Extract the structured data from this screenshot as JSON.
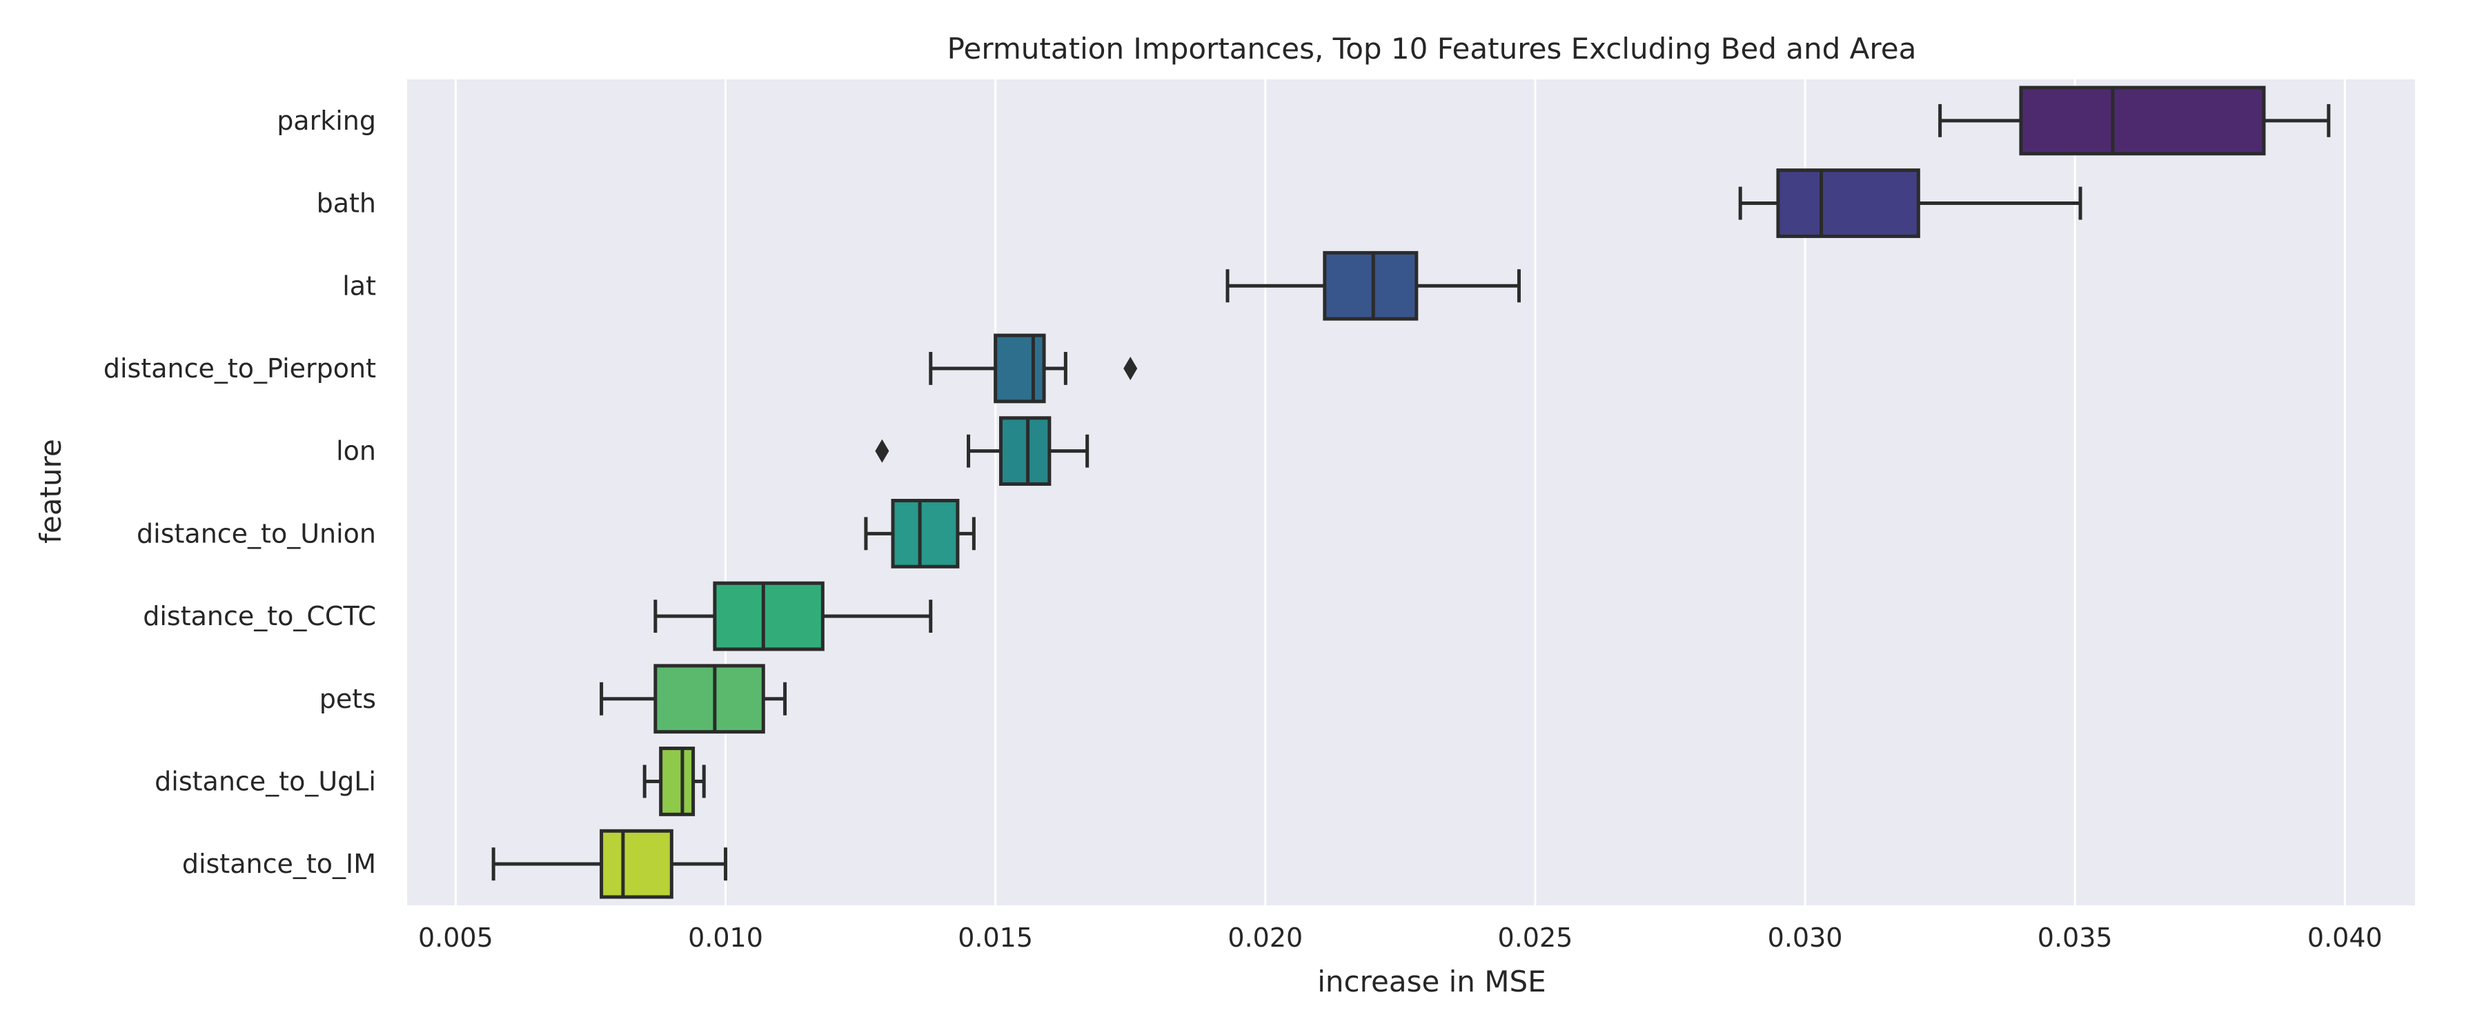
{
  "chart_data": {
    "type": "boxplot",
    "orientation": "horizontal",
    "title": "Permutation Importances, Top 10 Features Excluding Bed and Area",
    "xlabel": "increase in MSE",
    "ylabel": "feature",
    "xlim": [
      0.0041,
      0.0413
    ],
    "xticks": [
      "0.005",
      "0.010",
      "0.015",
      "0.020",
      "0.025",
      "0.030",
      "0.035",
      "0.040"
    ],
    "grid": "x-major",
    "categories": [
      "parking",
      "bath",
      "lat",
      "distance_to_Pierpont",
      "lon",
      "distance_to_Union",
      "distance_to_CCTC",
      "pets",
      "distance_to_UgLi",
      "distance_to_IM"
    ],
    "boxes": [
      {
        "whisker_low": 0.0325,
        "q1": 0.034,
        "median": 0.0357,
        "q3": 0.0385,
        "whisker_high": 0.0397,
        "outliers": []
      },
      {
        "whisker_low": 0.0288,
        "q1": 0.0295,
        "median": 0.0303,
        "q3": 0.0321,
        "whisker_high": 0.0351,
        "outliers": []
      },
      {
        "whisker_low": 0.0193,
        "q1": 0.0211,
        "median": 0.022,
        "q3": 0.0228,
        "whisker_high": 0.0247,
        "outliers": []
      },
      {
        "whisker_low": 0.0138,
        "q1": 0.015,
        "median": 0.0157,
        "q3": 0.0159,
        "whisker_high": 0.0163,
        "outliers": [
          0.0175
        ]
      },
      {
        "whisker_low": 0.0145,
        "q1": 0.0151,
        "median": 0.0156,
        "q3": 0.016,
        "whisker_high": 0.0167,
        "outliers": [
          0.0129
        ]
      },
      {
        "whisker_low": 0.0126,
        "q1": 0.0131,
        "median": 0.0136,
        "q3": 0.0143,
        "whisker_high": 0.0146,
        "outliers": []
      },
      {
        "whisker_low": 0.0087,
        "q1": 0.0098,
        "median": 0.0107,
        "q3": 0.0118,
        "whisker_high": 0.0138,
        "outliers": []
      },
      {
        "whisker_low": 0.0077,
        "q1": 0.0087,
        "median": 0.0098,
        "q3": 0.0107,
        "whisker_high": 0.0111,
        "outliers": []
      },
      {
        "whisker_low": 0.0085,
        "q1": 0.0088,
        "median": 0.0092,
        "q3": 0.0094,
        "whisker_high": 0.0096,
        "outliers": []
      },
      {
        "whisker_low": 0.0057,
        "q1": 0.0077,
        "median": 0.0081,
        "q3": 0.009,
        "whisker_high": 0.01,
        "outliers": []
      }
    ],
    "colors": [
      "#4d2a6e",
      "#433f84",
      "#39568c",
      "#2e6f8e",
      "#258789",
      "#28998a",
      "#32ad7a",
      "#5ab96d",
      "#8fc94a",
      "#b8d238"
    ]
  }
}
